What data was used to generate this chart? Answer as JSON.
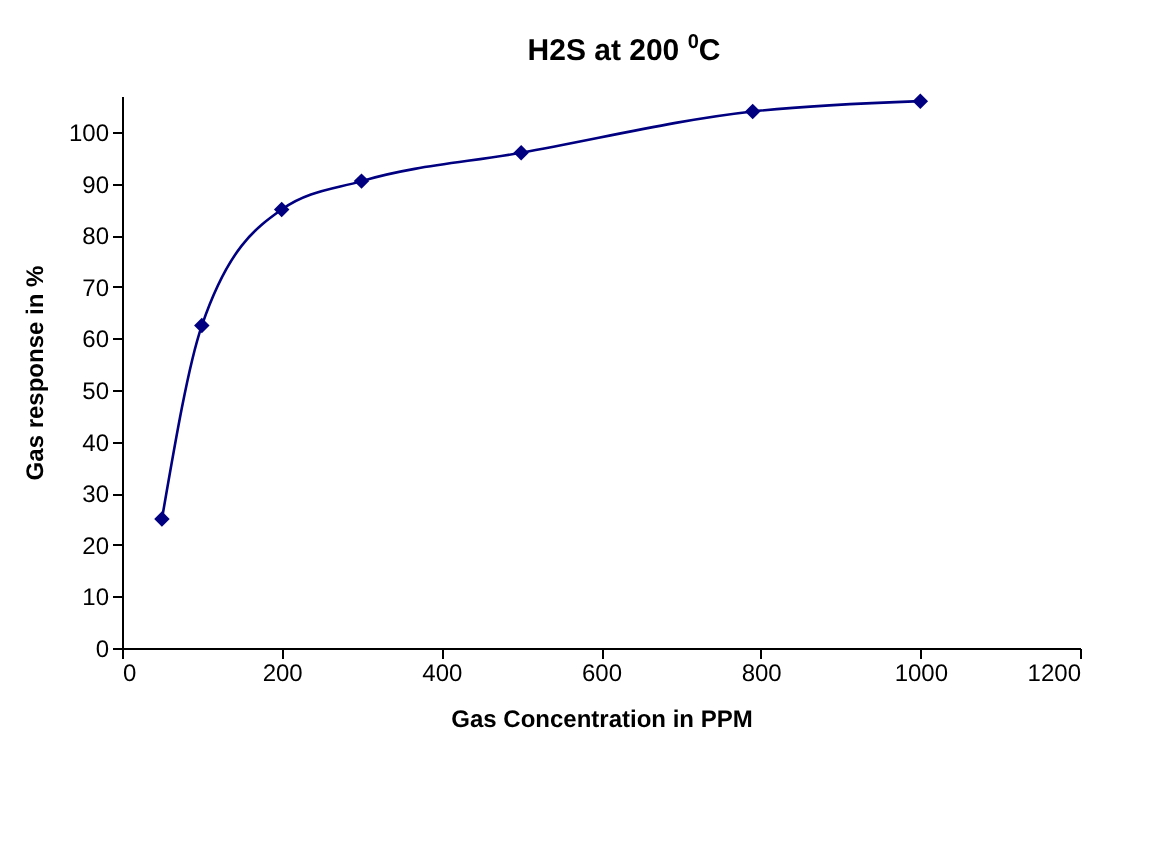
{
  "chart_data": {
    "type": "line",
    "title": "H2S at 200 $^{0}$C",
    "xlabel": "Gas Concentration in PPM",
    "ylabel": "Gas response in %",
    "x": [
      50,
      100,
      200,
      300,
      500,
      790,
      1000
    ],
    "series": [
      {
        "color": "#000080",
        "values": [
          25,
          62.5,
          85,
          90.5,
          96,
          104,
          106
        ]
      }
    ],
    "xlim": [
      0,
      1200
    ],
    "xticks": [
      0,
      200,
      400,
      600,
      800,
      1000,
      1200
    ],
    "ylim": [
      0,
      107
    ],
    "yticks": [
      0,
      10,
      20,
      30,
      40,
      50,
      60,
      70,
      80,
      90,
      100
    ],
    "grid": false,
    "marker": "diamond",
    "line_style": "solid"
  }
}
